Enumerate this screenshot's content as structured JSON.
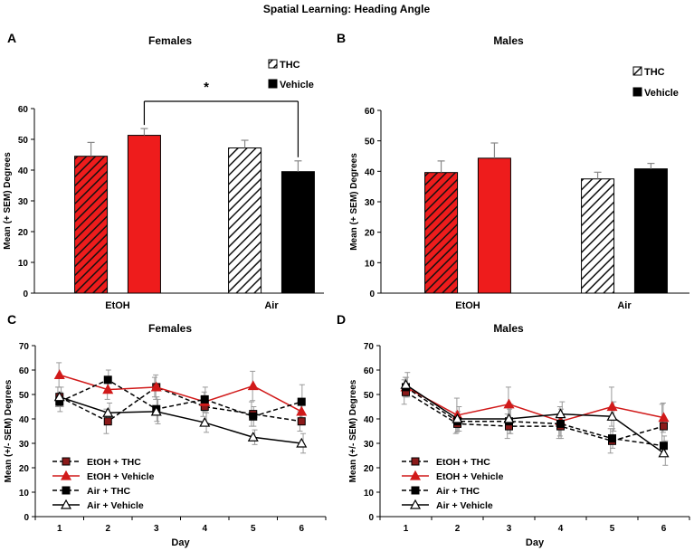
{
  "figure_title": "Spatial Learning: Heading Angle",
  "panel_letters": [
    "A",
    "B",
    "C",
    "D"
  ],
  "significance_marker": "*",
  "colors": {
    "red": "#ee1c1c",
    "black": "#000000",
    "error": "#888888",
    "line_gray": "#555555"
  },
  "chart_data": [
    {
      "type": "bar",
      "panel": "A",
      "title": "Females",
      "ylabel": "Mean (+ SEM) Degrees",
      "ylim": [
        0,
        60
      ],
      "yticks": [
        0,
        10,
        20,
        30,
        40,
        50,
        60
      ],
      "groups": [
        "EtOH",
        "Air"
      ],
      "legend": [
        "THC",
        "Vehicle"
      ],
      "bars": [
        {
          "group": "EtOH",
          "series": "THC",
          "value": 44.5,
          "sem": 4.5
        },
        {
          "group": "EtOH",
          "series": "Vehicle",
          "value": 51.3,
          "sem": 2.2
        },
        {
          "group": "Air",
          "series": "THC",
          "value": 47.2,
          "sem": 2.5
        },
        {
          "group": "Air",
          "series": "Vehicle",
          "value": 39.5,
          "sem": 3.5
        }
      ]
    },
    {
      "type": "bar",
      "panel": "B",
      "title": "Males",
      "ylabel": "Mean (+ SEM) Degrees",
      "ylim": [
        0,
        60
      ],
      "yticks": [
        0,
        10,
        20,
        30,
        40,
        50,
        60
      ],
      "groups": [
        "EtOH",
        "Air"
      ],
      "legend": [
        "THC",
        "Vehicle"
      ],
      "bars": [
        {
          "group": "EtOH",
          "series": "THC",
          "value": 39.6,
          "sem": 3.8
        },
        {
          "group": "EtOH",
          "series": "Vehicle",
          "value": 44.3,
          "sem": 5.0
        },
        {
          "group": "Air",
          "series": "THC",
          "value": 37.5,
          "sem": 2.2
        },
        {
          "group": "Air",
          "series": "Vehicle",
          "value": 40.8,
          "sem": 1.8
        }
      ]
    },
    {
      "type": "line",
      "panel": "C",
      "title": "Females",
      "xlabel": "Day",
      "ylabel": "Mean (+/- SEM) Degrees",
      "ylim": [
        0,
        70
      ],
      "yticks": [
        0,
        10,
        20,
        30,
        40,
        50,
        60,
        70
      ],
      "x": [
        1,
        2,
        3,
        4,
        5,
        6
      ],
      "series": [
        {
          "name": "EtOH + THC",
          "values": [
            49,
            39,
            53,
            45,
            42,
            39
          ],
          "sem": [
            4,
            5,
            4,
            4,
            5,
            4
          ]
        },
        {
          "name": "EtOH + Vehicle",
          "values": [
            58,
            52,
            53,
            47,
            53.5,
            43
          ],
          "sem": [
            5,
            4,
            5,
            4,
            6,
            5
          ]
        },
        {
          "name": "Air + THC",
          "values": [
            47,
            56,
            44,
            48,
            41,
            47
          ],
          "sem": [
            4,
            4,
            5,
            5,
            4,
            7
          ]
        },
        {
          "name": "Air + Vehicle",
          "values": [
            49,
            42.5,
            43,
            38.5,
            32.5,
            30
          ],
          "sem": [
            4,
            4,
            5,
            4,
            3,
            4
          ]
        }
      ]
    },
    {
      "type": "line",
      "panel": "D",
      "title": "Males",
      "xlabel": "Day",
      "ylabel": "Mean (+/- SEM) Degrees",
      "ylim": [
        0,
        70
      ],
      "yticks": [
        0,
        10,
        20,
        30,
        40,
        50,
        60,
        70
      ],
      "x": [
        1,
        2,
        3,
        4,
        5,
        6
      ],
      "series": [
        {
          "name": "EtOH + THC",
          "values": [
            51,
            38,
            37,
            37,
            31,
            37
          ],
          "sem": [
            5,
            4,
            5,
            5,
            5,
            9
          ]
        },
        {
          "name": "EtOH + Vehicle",
          "values": [
            53,
            41.5,
            46,
            39,
            45,
            40.5
          ],
          "sem": [
            4,
            7,
            7,
            6,
            8,
            6
          ]
        },
        {
          "name": "Air + THC",
          "values": [
            53,
            39,
            39,
            38,
            32,
            29
          ],
          "sem": [
            4,
            4,
            5,
            6,
            4,
            4
          ]
        },
        {
          "name": "Air + Vehicle",
          "values": [
            54,
            40,
            40,
            42,
            41,
            26
          ],
          "sem": [
            5,
            5,
            6,
            5,
            6,
            5
          ]
        }
      ]
    }
  ]
}
